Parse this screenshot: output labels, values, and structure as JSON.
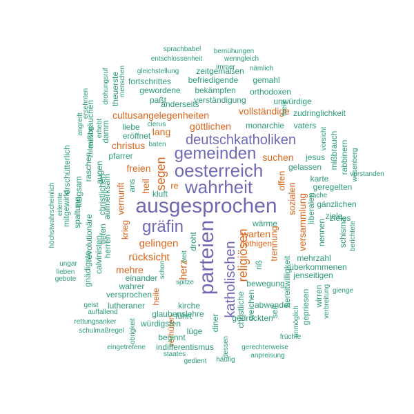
{
  "colors": {
    "purple": "#6f6ab3",
    "orange": "#d9651b",
    "teal": "#2a9a78"
  },
  "words": [
    {
      "text": "ausgesprochen",
      "color": "purple"
    },
    {
      "text": "parteien",
      "color": "purple"
    },
    {
      "text": "wahrheit",
      "color": "purple"
    },
    {
      "text": "oesterreich",
      "color": "purple"
    },
    {
      "text": "gemeinden",
      "color": "purple"
    },
    {
      "text": "deutschkatholiken",
      "color": "purple"
    },
    {
      "text": "gräfin",
      "color": "purple"
    },
    {
      "text": "katholischen",
      "color": "purple"
    },
    {
      "text": "religiösen",
      "color": "orange"
    },
    {
      "text": "segen",
      "color": "orange"
    },
    {
      "text": "gelingen",
      "color": "orange"
    },
    {
      "text": "rücksicht",
      "color": "orange"
    },
    {
      "text": "herz",
      "color": "orange"
    },
    {
      "text": "vollständige",
      "color": "orange"
    },
    {
      "text": "göttlichen",
      "color": "orange"
    },
    {
      "text": "cultusangelegenheiten",
      "color": "orange"
    },
    {
      "text": "warten",
      "color": "orange"
    },
    {
      "text": "suchen",
      "color": "orange"
    },
    {
      "text": "christus",
      "color": "orange"
    },
    {
      "text": "freien",
      "color": "orange"
    },
    {
      "text": "mehre",
      "color": "orange"
    },
    {
      "text": "lang",
      "color": "orange"
    },
    {
      "text": "heil",
      "color": "orange"
    },
    {
      "text": "re",
      "color": "orange"
    },
    {
      "text": "krieg",
      "color": "orange"
    },
    {
      "text": "vernunft",
      "color": "orange"
    },
    {
      "text": "versammlung",
      "color": "orange"
    },
    {
      "text": "sozialen",
      "color": "orange"
    },
    {
      "text": "offen",
      "color": "orange"
    },
    {
      "text": "trennung",
      "color": "orange"
    },
    {
      "text": "nöthigen",
      "color": "orange"
    },
    {
      "text": "verhüten",
      "color": "orange"
    },
    {
      "text": "heile",
      "color": "orange"
    },
    {
      "text": "monarchie",
      "color": "teal"
    },
    {
      "text": "zeitgemäßen",
      "color": "teal"
    },
    {
      "text": "befriedigende",
      "color": "teal"
    },
    {
      "text": "gemahl",
      "color": "teal"
    },
    {
      "text": "fortschrittes",
      "color": "teal"
    },
    {
      "text": "gewordene",
      "color": "teal"
    },
    {
      "text": "bekämpfen",
      "color": "teal"
    },
    {
      "text": "orthodoxen",
      "color": "teal"
    },
    {
      "text": "paßt",
      "color": "teal"
    },
    {
      "text": "verständigung",
      "color": "teal"
    },
    {
      "text": "unwürdige",
      "color": "teal"
    },
    {
      "text": "anderseits",
      "color": "teal"
    },
    {
      "text": "zudringlichkeit",
      "color": "teal"
    },
    {
      "text": "vaters",
      "color": "teal"
    },
    {
      "text": "liebe",
      "color": "teal"
    },
    {
      "text": "eröffnet",
      "color": "teal"
    },
    {
      "text": "pfarrer",
      "color": "teal"
    },
    {
      "text": "jesus",
      "color": "teal"
    },
    {
      "text": "gelassen",
      "color": "teal"
    },
    {
      "text": "karte",
      "color": "teal"
    },
    {
      "text": "geregelten",
      "color": "teal"
    },
    {
      "text": "gänzlichen",
      "color": "teal"
    },
    {
      "text": "liberalen",
      "color": "teal"
    },
    {
      "text": "ziele",
      "color": "teal"
    },
    {
      "text": "zieles",
      "color": "teal"
    },
    {
      "text": "nennen",
      "color": "teal"
    },
    {
      "text": "schisma",
      "color": "teal"
    },
    {
      "text": "wärme",
      "color": "teal"
    },
    {
      "text": "mehrzahl",
      "color": "teal"
    },
    {
      "text": "überkommenen",
      "color": "teal"
    },
    {
      "text": "jenseitigen",
      "color": "teal"
    },
    {
      "text": "wirren",
      "color": "teal"
    },
    {
      "text": "gepriesen",
      "color": "teal"
    },
    {
      "text": "abwendet",
      "color": "teal"
    },
    {
      "text": "gedrückten",
      "color": "teal"
    },
    {
      "text": "bewegung",
      "color": "teal"
    },
    {
      "text": "riß",
      "color": "teal"
    },
    {
      "text": "bereitwilligkeit",
      "color": "teal"
    },
    {
      "text": "seit",
      "color": "teal"
    },
    {
      "text": "einander",
      "color": "teal"
    },
    {
      "text": "wahrer",
      "color": "teal"
    },
    {
      "text": "versprochen",
      "color": "teal"
    },
    {
      "text": "lutheraner",
      "color": "teal"
    },
    {
      "text": "kirche",
      "color": "teal"
    },
    {
      "text": "glaubenslehre",
      "color": "teal"
    },
    {
      "text": "würdigsten",
      "color": "teal"
    },
    {
      "text": "lüge",
      "color": "teal"
    },
    {
      "text": "beginnt",
      "color": "teal"
    },
    {
      "text": "indifferentismus",
      "color": "teal"
    },
    {
      "text": "führt",
      "color": "teal"
    },
    {
      "text": "diner",
      "color": "teal"
    },
    {
      "text": "droht",
      "color": "teal"
    },
    {
      "text": "spitze",
      "color": "teal"
    },
    {
      "text": "kluft",
      "color": "teal"
    },
    {
      "text": "herren",
      "color": "teal"
    },
    {
      "text": "aufmerksam",
      "color": "teal"
    },
    {
      "text": "ans",
      "color": "teal"
    },
    {
      "text": "tiefen",
      "color": "teal"
    },
    {
      "text": "christlichen",
      "color": "teal"
    },
    {
      "text": "revolutionäre",
      "color": "teal"
    },
    {
      "text": "gnädigste",
      "color": "teal"
    },
    {
      "text": "calvinisten",
      "color": "teal"
    },
    {
      "text": "spaltung",
      "color": "teal"
    },
    {
      "text": "mitgewirkt",
      "color": "teal"
    },
    {
      "text": "langsam",
      "color": "teal"
    },
    {
      "text": "raschen",
      "color": "teal"
    },
    {
      "text": "erschütterlich",
      "color": "teal"
    },
    {
      "text": "mißbräuchen",
      "color": "teal"
    },
    {
      "text": "theuerste",
      "color": "teal"
    },
    {
      "text": "damm",
      "color": "teal"
    },
    {
      "text": "rabbinern",
      "color": "teal"
    },
    {
      "text": "mißbrauch",
      "color": "teal"
    },
    {
      "text": "sprachbabel",
      "color": "teal"
    },
    {
      "text": "bemühungen",
      "color": "teal"
    },
    {
      "text": "entschlossenheit",
      "color": "teal"
    },
    {
      "text": "wenngleich",
      "color": "teal"
    },
    {
      "text": "immer",
      "color": "teal"
    },
    {
      "text": "gleichstellung",
      "color": "teal"
    },
    {
      "text": "nämlich",
      "color": "teal"
    },
    {
      "text": "clerus",
      "color": "teal"
    },
    {
      "text": "baten",
      "color": "teal"
    },
    {
      "text": "vorsicht",
      "color": "teal"
    },
    {
      "text": "wesenberg",
      "color": "teal"
    },
    {
      "text": "verstanden",
      "color": "teal"
    },
    {
      "text": "sache",
      "color": "teal"
    },
    {
      "text": "berichtete",
      "color": "teal"
    },
    {
      "text": "höchstwahrscheinlich",
      "color": "teal"
    },
    {
      "text": "ungar",
      "color": "teal"
    },
    {
      "text": "lieben",
      "color": "teal"
    },
    {
      "text": "gebote",
      "color": "teal"
    },
    {
      "text": "geist",
      "color": "teal"
    },
    {
      "text": "auffallend",
      "color": "teal"
    },
    {
      "text": "rettungsanker",
      "color": "teal"
    },
    {
      "text": "schulmaßregel",
      "color": "teal"
    },
    {
      "text": "eingetretene",
      "color": "teal"
    },
    {
      "text": "staates",
      "color": "teal"
    },
    {
      "text": "gedient",
      "color": "teal"
    },
    {
      "text": "häufig",
      "color": "teal"
    },
    {
      "text": "gerechterweise",
      "color": "teal"
    },
    {
      "text": "anpreisung",
      "color": "teal"
    },
    {
      "text": "früchte",
      "color": "teal"
    },
    {
      "text": "unmöglich",
      "color": "teal"
    },
    {
      "text": "verbreitung",
      "color": "teal"
    },
    {
      "text": "gienge",
      "color": "teal"
    },
    {
      "text": "theile",
      "color": "teal"
    },
    {
      "text": "christliche",
      "color": "teal"
    },
    {
      "text": "weichen",
      "color": "teal"
    },
    {
      "text": "obrigkeit",
      "color": "teal"
    },
    {
      "text": "dessen",
      "color": "teal"
    },
    {
      "text": "schon",
      "color": "teal"
    },
    {
      "text": "drohungsruf",
      "color": "teal"
    },
    {
      "text": "menschen",
      "color": "teal"
    },
    {
      "text": "angreift",
      "color": "teal"
    },
    {
      "text": "erhebt",
      "color": "teal"
    },
    {
      "text": "erlernte",
      "color": "teal"
    },
    {
      "text": "weit",
      "color": "teal"
    },
    {
      "text": "augen",
      "color": "teal"
    },
    {
      "text": "ersehnten",
      "color": "teal"
    },
    {
      "text": "zulassung",
      "color": "teal"
    }
  ]
}
